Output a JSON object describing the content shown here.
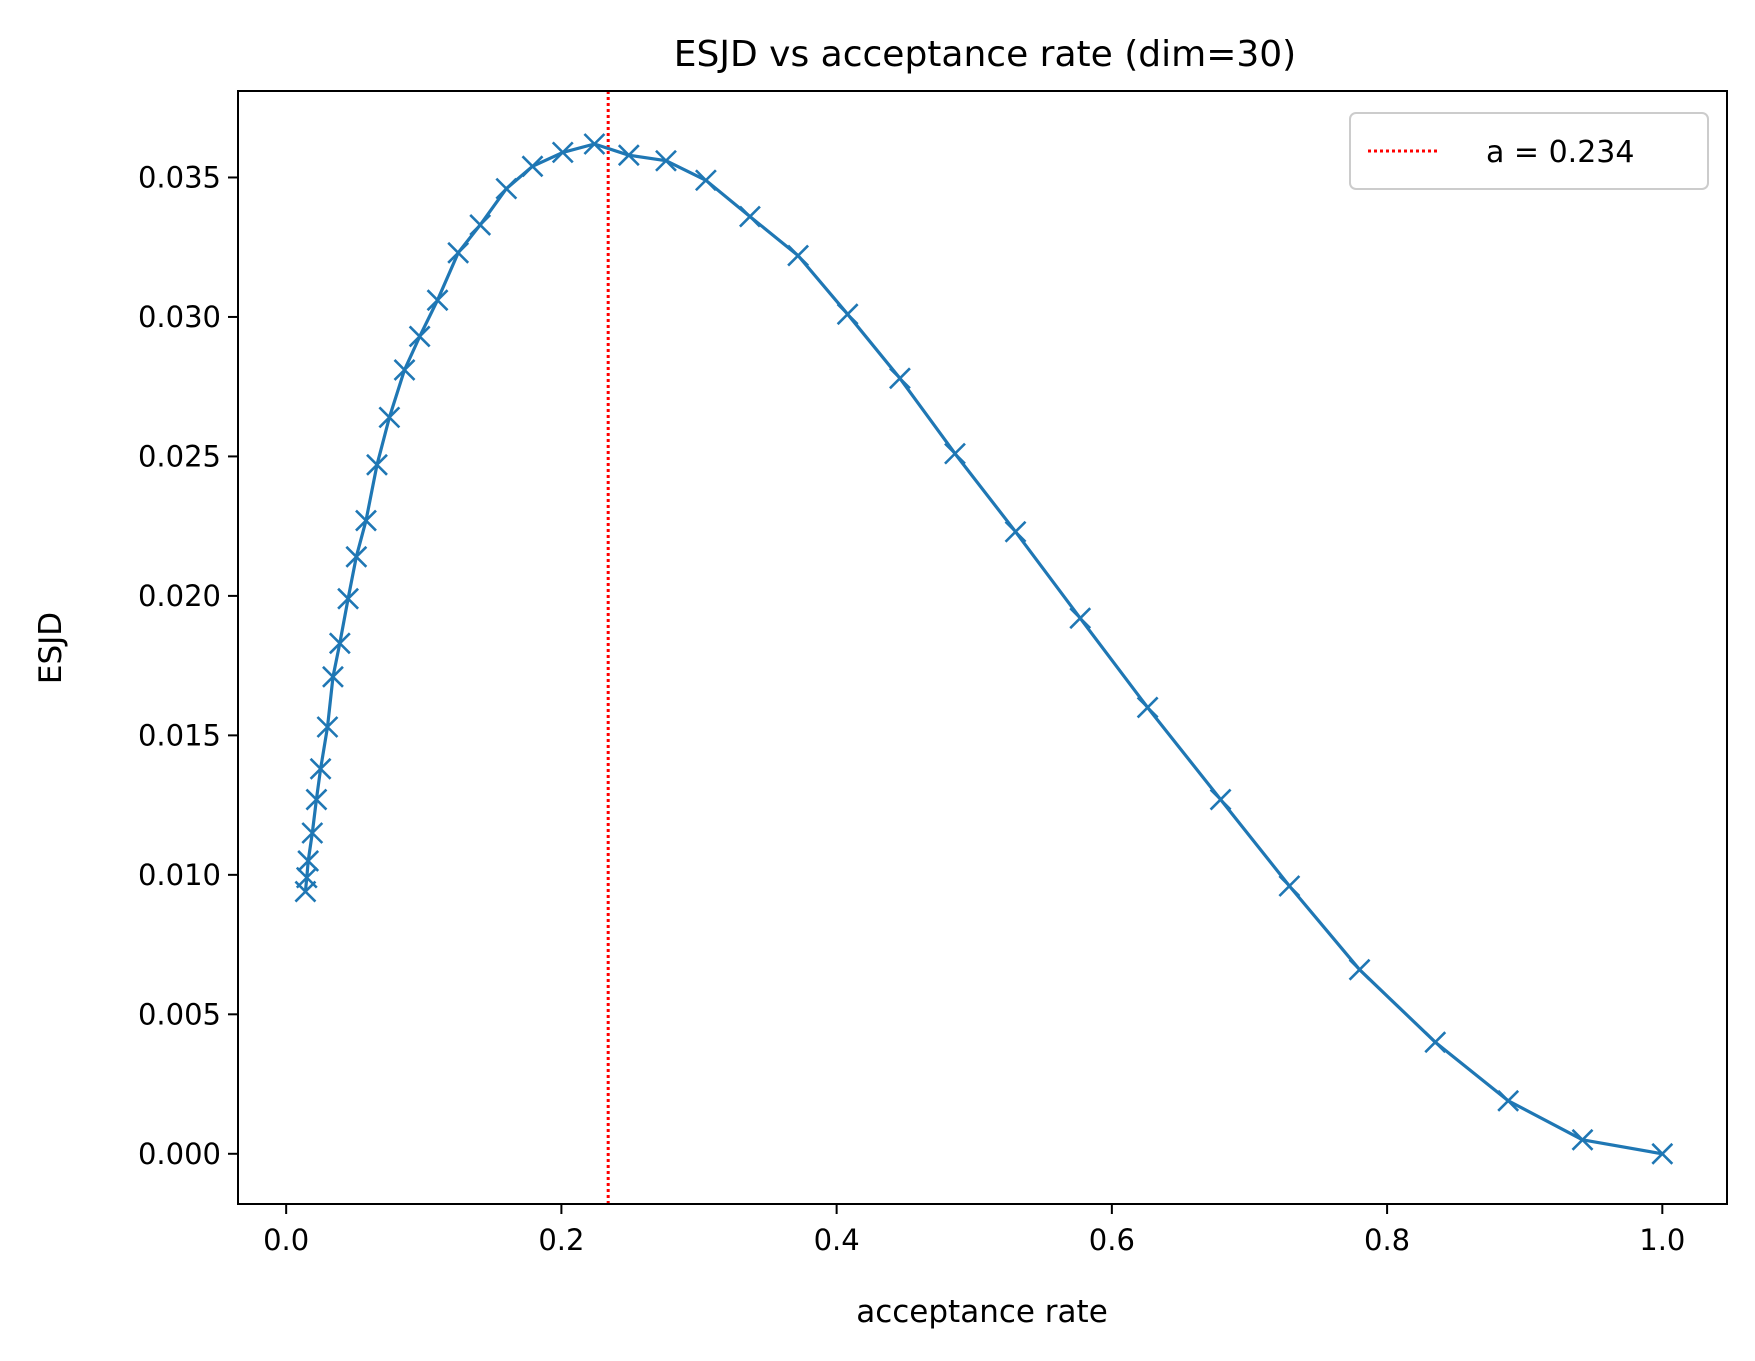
{
  "chart_data": {
    "type": "line",
    "title": "ESJD vs acceptance rate (dim=30)",
    "xlabel": "acceptance rate",
    "ylabel": "ESJD",
    "xlim": [
      -0.035,
      1.047
    ],
    "ylim": [
      -0.0018,
      0.0381
    ],
    "xticks": [
      0.0,
      0.2,
      0.4,
      0.6,
      0.8,
      1.0
    ],
    "xtick_labels": [
      "0.0",
      "0.2",
      "0.4",
      "0.6",
      "0.8",
      "1.0"
    ],
    "yticks": [
      0.0,
      0.005,
      0.01,
      0.015,
      0.02,
      0.025,
      0.03,
      0.035
    ],
    "ytick_labels": [
      "0.000",
      "0.005",
      "0.010",
      "0.015",
      "0.020",
      "0.025",
      "0.030",
      "0.035"
    ],
    "grid": false,
    "legend_position": "top-right",
    "series": [
      {
        "name": "ESJD",
        "color": "#1f77b4",
        "marker": "x",
        "x": [
          0.014,
          0.015,
          0.016,
          0.019,
          0.022,
          0.025,
          0.03,
          0.034,
          0.039,
          0.045,
          0.051,
          0.058,
          0.066,
          0.075,
          0.086,
          0.097,
          0.11,
          0.125,
          0.141,
          0.16,
          0.179,
          0.201,
          0.224,
          0.249,
          0.276,
          0.305,
          0.337,
          0.372,
          0.408,
          0.446,
          0.486,
          0.53,
          0.577,
          0.626,
          0.679,
          0.729,
          0.78,
          0.835,
          0.888,
          0.942,
          1.0
        ],
        "y": [
          0.0094,
          0.0099,
          0.0105,
          0.0115,
          0.0127,
          0.0138,
          0.0153,
          0.0171,
          0.0183,
          0.0199,
          0.0214,
          0.0227,
          0.0247,
          0.0264,
          0.0281,
          0.0293,
          0.0306,
          0.0323,
          0.0333,
          0.0346,
          0.0354,
          0.0359,
          0.0362,
          0.0358,
          0.0356,
          0.0349,
          0.0336,
          0.0322,
          0.0301,
          0.0278,
          0.0251,
          0.0223,
          0.0192,
          0.016,
          0.0127,
          0.0096,
          0.0066,
          0.004,
          0.0019,
          0.0005,
          0.0
        ]
      }
    ],
    "reference_line": {
      "label": "a = 0.234",
      "x": 0.234,
      "color": "#ff0000",
      "style": "dotted"
    }
  }
}
